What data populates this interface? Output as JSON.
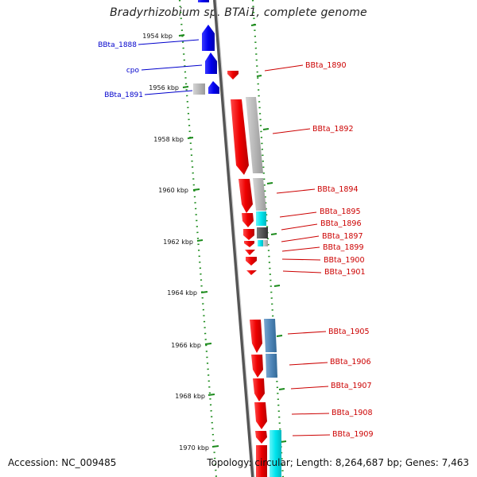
{
  "title": "Bradyrhizobium sp. BTAi1, complete genome",
  "accession_text": "Accession: NC_009485",
  "topology_text": "Topology: circular; Length: 8,264,687 bp; Genes: 7,463",
  "scale_ticks": [
    "1954 kbp",
    "1956 kbp",
    "1958 kbp",
    "1960 kbp",
    "1962 kbp",
    "1964 kbp",
    "1966 kbp",
    "1968 kbp",
    "1970 kbp"
  ],
  "left_genes": [
    "BBta_1888",
    "cpo",
    "BBta_1891"
  ],
  "right_genes": [
    "BBta_1890",
    "BBta_1892",
    "BBta_1894",
    "BBta_1895",
    "BBta_1896",
    "BBta_1897",
    "BBta_1899",
    "BBta_1900",
    "BBta_1901",
    "BBta_1905",
    "BBta_1906",
    "BBta_1907",
    "BBta_1908",
    "BBta_1909"
  ],
  "colors": {
    "forward_strand": "#0000ee",
    "reverse_strand": "#ee0000",
    "left_label": "#0000cc",
    "right_label": "#cc0000",
    "backbone": "#888888",
    "tick_dots": "#1a8a1a",
    "cog_gray": "#b8b8b8",
    "cog_cyan": "#00e5ee",
    "cog_steelblue": "#4f86b8",
    "cog_dark": "#555555"
  }
}
